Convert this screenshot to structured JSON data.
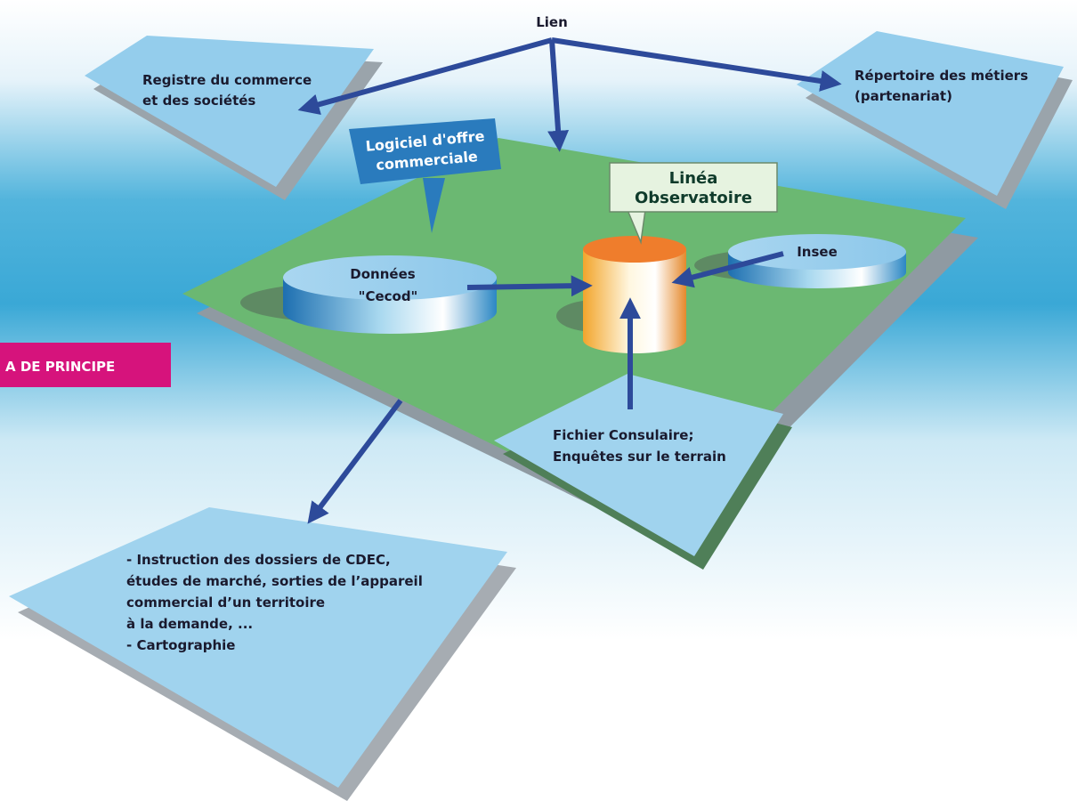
{
  "tag": "A DE PRINCIPE",
  "link": "Lien",
  "registre": {
    "lines": [
      "Registre du commerce",
      "et des sociétés"
    ]
  },
  "repertoire": {
    "lines": [
      "Répertoire des métiers",
      "(partenariat)"
    ]
  },
  "logiciel": {
    "lines": [
      "Logiciel d'offre",
      "commerciale"
    ]
  },
  "linea": {
    "lines": [
      "Linéa",
      "Observatoire"
    ]
  },
  "donnees": {
    "lines": [
      "Données",
      "\"Cecod\""
    ]
  },
  "insee": {
    "label": "Insee"
  },
  "fichier": {
    "lines": [
      "Fichier Consulaire;",
      "Enquêtes sur le terrain"
    ]
  },
  "usages": {
    "lines": [
      "- Instruction des dossiers de CDEC,",
      "études de marché, sorties de l’appareil",
      "commercial d’un territoire",
      "à la demande, ...",
      "- Cartographie"
    ]
  }
}
